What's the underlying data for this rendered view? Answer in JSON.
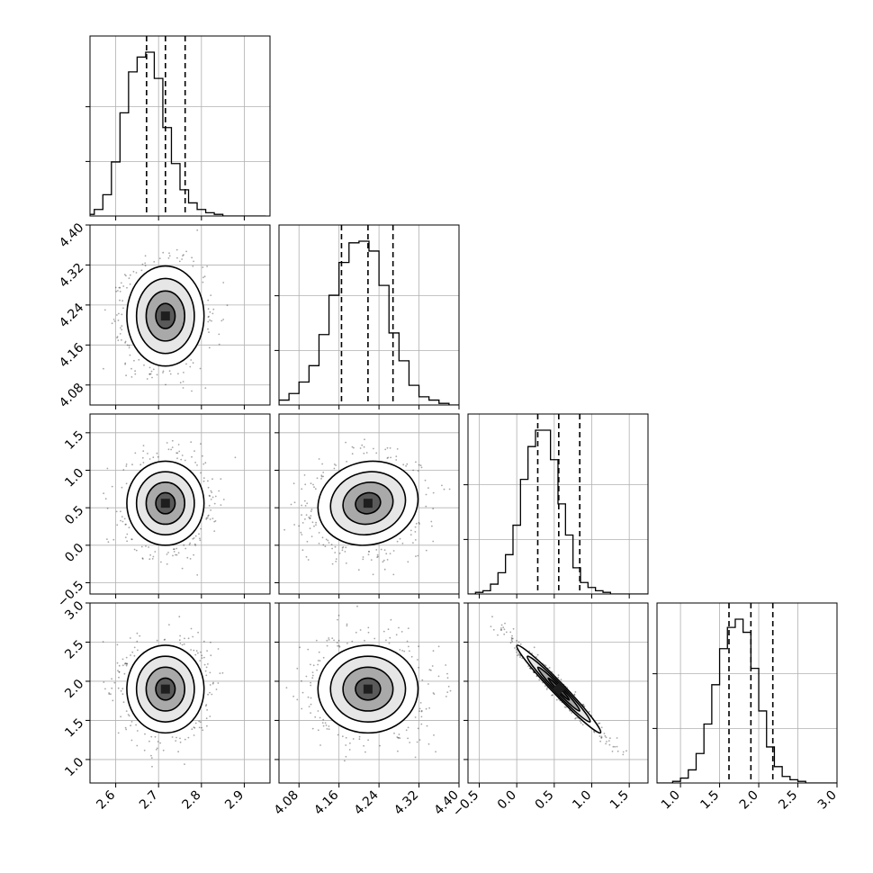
{
  "chart_data": {
    "type": "corner",
    "grid": true,
    "parameters": [
      {
        "range": [
          2.54,
          2.96
        ],
        "ticks": [
          2.6,
          2.7,
          2.8,
          2.9
        ],
        "tick_labels": [
          "2.6",
          "2.7",
          "2.8",
          "2.9"
        ],
        "quantiles": [
          2.672,
          2.716,
          2.762
        ],
        "mean": 2.716,
        "sd": 0.045
      },
      {
        "range": [
          4.04,
          4.4
        ],
        "ticks": [
          4.08,
          4.16,
          4.24,
          4.32,
          4.4
        ],
        "tick_labels": [
          "4.08",
          "4.16",
          "4.24",
          "4.32",
          "4.40"
        ],
        "quantiles": [
          4.165,
          4.218,
          4.268
        ],
        "mean": 4.218,
        "sd": 0.05
      },
      {
        "range": [
          -0.65,
          1.75
        ],
        "ticks": [
          -0.5,
          0.0,
          0.5,
          1.0,
          1.5
        ],
        "tick_labels": [
          "−0.5",
          "0.0",
          "0.5",
          "1.0",
          "1.5"
        ],
        "quantiles": [
          0.28,
          0.56,
          0.84
        ],
        "mean": 0.56,
        "sd": 0.28
      },
      {
        "range": [
          0.7,
          3.0
        ],
        "ticks": [
          1.0,
          1.5,
          2.0,
          2.5,
          3.0
        ],
        "tick_labels": [
          "1.0",
          "1.5",
          "2.0",
          "2.5",
          "3.0"
        ],
        "quantiles": [
          1.62,
          1.9,
          2.18
        ],
        "mean": 1.9,
        "sd": 0.28
      }
    ],
    "diagonal_histograms": [
      {
        "param": 0,
        "bin_start": 2.53,
        "bin_width": 0.02,
        "counts": [
          0.01,
          0.04,
          0.13,
          0.33,
          0.63,
          0.88,
          0.97,
          1.0,
          0.84,
          0.54,
          0.32,
          0.16,
          0.08,
          0.04,
          0.02,
          0.01,
          0.0,
          0.0,
          0.0,
          0.0,
          0.0
        ]
      },
      {
        "param": 1,
        "bin_start": 4.04,
        "bin_width": 0.02,
        "counts": [
          0.03,
          0.07,
          0.14,
          0.24,
          0.43,
          0.67,
          0.87,
          0.99,
          1.0,
          0.94,
          0.73,
          0.44,
          0.27,
          0.12,
          0.05,
          0.03,
          0.01,
          0.0
        ]
      },
      {
        "param": 2,
        "bin_start": -0.65,
        "bin_width": 0.1,
        "counts": [
          0.0,
          0.01,
          0.02,
          0.06,
          0.13,
          0.24,
          0.42,
          0.7,
          0.9,
          1.0,
          1.0,
          0.82,
          0.55,
          0.36,
          0.16,
          0.07,
          0.04,
          0.02,
          0.01,
          0.0,
          0.0,
          0.0,
          0.0,
          0.0
        ]
      },
      {
        "param": 3,
        "bin_start": 0.7,
        "bin_width": 0.1,
        "counts": [
          0.0,
          0.0,
          0.01,
          0.03,
          0.08,
          0.18,
          0.36,
          0.6,
          0.82,
          0.95,
          1.0,
          0.92,
          0.7,
          0.44,
          0.22,
          0.1,
          0.04,
          0.02,
          0.01,
          0.0,
          0.0,
          0.0,
          0.0
        ]
      }
    ],
    "pairs": [
      {
        "x": 0,
        "y": 1,
        "rho": 0.0
      },
      {
        "x": 0,
        "y": 2,
        "rho": 0.0
      },
      {
        "x": 1,
        "y": 2,
        "rho": 0.1
      },
      {
        "x": 0,
        "y": 3,
        "rho": 0.0
      },
      {
        "x": 1,
        "y": 3,
        "rho": 0.0
      },
      {
        "x": 2,
        "y": 3,
        "rho": -0.98
      }
    ]
  }
}
